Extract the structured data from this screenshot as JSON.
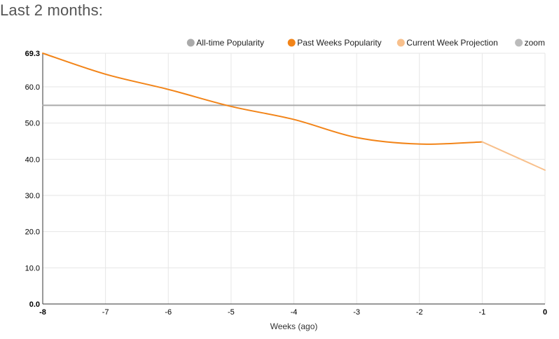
{
  "page": {
    "heading": "Last 2 months:"
  },
  "chart_data": {
    "type": "line",
    "xlabel": "Weeks (ago)",
    "ylabel": "",
    "xlim": [
      -8,
      0
    ],
    "ylim": [
      0,
      69.3
    ],
    "x_ticks": [
      -8,
      -7,
      -6,
      -5,
      -4,
      -3,
      -2,
      -1,
      0
    ],
    "x_tick_labels": [
      "-8",
      "-7",
      "-6",
      "-5",
      "-4",
      "-3",
      "-2",
      "-1",
      "0"
    ],
    "y_ticks": [
      0,
      10,
      20,
      30,
      40,
      50,
      60,
      69.3
    ],
    "y_tick_labels": [
      "0.0",
      "10.0",
      "20.0",
      "30.0",
      "40.0",
      "50.0",
      "60.0",
      "69.3"
    ],
    "grid": true,
    "legend_position": "top-right",
    "legend": [
      {
        "name": "All-time Popularity",
        "color": "#aaaaaa"
      },
      {
        "name": "Past Weeks Popularity",
        "color": "#f28418"
      },
      {
        "name": "Current Week Projection",
        "color": "#f8c08c"
      },
      {
        "name": "zoom",
        "color": "#bbbbbb"
      }
    ],
    "series": [
      {
        "name": "All-time Popularity",
        "color": "#aaaaaa",
        "x": [
          -8,
          0
        ],
        "y": [
          54.9,
          54.9
        ]
      },
      {
        "name": "Past Weeks Popularity",
        "color": "#f28418",
        "x": [
          -8,
          -7,
          -6,
          -5,
          -4,
          -3,
          -2,
          -1
        ],
        "y": [
          69.3,
          63.5,
          59.3,
          54.6,
          51.0,
          46.0,
          44.2,
          44.8
        ]
      },
      {
        "name": "Current Week Projection",
        "color": "#f8c08c",
        "x": [
          -1,
          0
        ],
        "y": [
          44.8,
          37.0
        ]
      }
    ]
  }
}
